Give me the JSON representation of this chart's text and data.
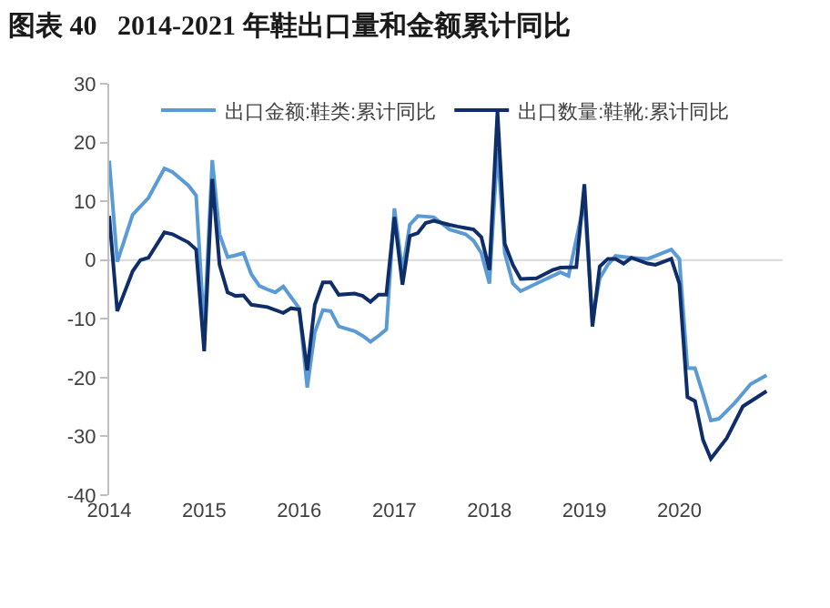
{
  "chart_data": {
    "type": "line",
    "title": "图表 40   2014-2021 年鞋出口量和金额累计同比",
    "xlim": [
      "2014-01",
      "2021-02"
    ],
    "xticks": [
      {
        "value": "2014-01",
        "label": "2014"
      },
      {
        "value": "2015-01",
        "label": "2015"
      },
      {
        "value": "2016-01",
        "label": "2016"
      },
      {
        "value": "2017-01",
        "label": "2017"
      },
      {
        "value": "2018-01",
        "label": "2018"
      },
      {
        "value": "2019-01",
        "label": "2019"
      },
      {
        "value": "2020-01",
        "label": "2020"
      }
    ],
    "ylim": [
      -40,
      30
    ],
    "yticks": [
      -40,
      -30,
      -20,
      -10,
      0,
      10,
      20,
      30
    ],
    "grid": false,
    "legend": "top",
    "marker": "none",
    "line_style": "solid",
    "ref_lines": [
      {
        "axis": "y",
        "value": 0,
        "color": "#d9d9d9"
      }
    ],
    "series": [
      {
        "name": "出口金额:鞋类:累计同比",
        "color": "#5b9bd5",
        "x": [
          "2014-01",
          "2014-02",
          "2014-04",
          "2014-06",
          "2014-08",
          "2014-09",
          "2014-11",
          "2014-12",
          "2015-01",
          "2015-02",
          "2015-03",
          "2015-04",
          "2015-05",
          "2015-06",
          "2015-07",
          "2015-08",
          "2015-09",
          "2015-10",
          "2015-11",
          "2016-01",
          "2016-02",
          "2016-03",
          "2016-04",
          "2016-05",
          "2016-06",
          "2016-08",
          "2016-09",
          "2016-10",
          "2016-11",
          "2016-12",
          "2017-01",
          "2017-02",
          "2017-03",
          "2017-04",
          "2017-06",
          "2017-08",
          "2017-10",
          "2017-11",
          "2017-12",
          "2018-01",
          "2018-02",
          "2018-03",
          "2018-04",
          "2018-05",
          "2018-07",
          "2018-09",
          "2018-10",
          "2018-11",
          "2019-01",
          "2019-02",
          "2019-03",
          "2019-04",
          "2019-05",
          "2019-07",
          "2019-09",
          "2019-10",
          "2019-12",
          "2020-01",
          "2020-02",
          "2020-03",
          "2020-04",
          "2020-05",
          "2020-06",
          "2020-08",
          "2020-10",
          "2020-12"
        ],
        "values": [
          16.9,
          -0.3,
          7.7,
          10.6,
          15.6,
          15.0,
          12.7,
          11.0,
          -12.0,
          17.0,
          4.4,
          0.5,
          0.8,
          1.2,
          -2.4,
          -4.4,
          -5.0,
          -5.5,
          -4.5,
          -8.2,
          -21.7,
          -12.3,
          -8.5,
          -8.7,
          -11.3,
          -12.1,
          -12.9,
          -13.9,
          -12.9,
          -11.8,
          8.8,
          -1.9,
          6.0,
          7.5,
          7.3,
          5.2,
          4.4,
          3.3,
          1.2,
          -4.0,
          19.0,
          1.2,
          -4.0,
          -5.3,
          -4.0,
          -2.7,
          -2.1,
          -2.7,
          10.0,
          -10.2,
          -3.1,
          -0.8,
          0.7,
          0.4,
          0.2,
          0.7,
          1.8,
          0.2,
          -18.4,
          -18.4,
          -22.8,
          -27.3,
          -27.0,
          -24.3,
          -21.1,
          -19.6
        ]
      },
      {
        "name": "出口数量:鞋靴:累计同比",
        "color": "#0f2d69",
        "x": [
          "2014-01",
          "2014-02",
          "2014-04",
          "2014-05",
          "2014-06",
          "2014-08",
          "2014-09",
          "2014-11",
          "2014-12",
          "2015-01",
          "2015-02",
          "2015-03",
          "2015-04",
          "2015-05",
          "2015-06",
          "2015-07",
          "2015-09",
          "2015-11",
          "2015-12",
          "2016-01",
          "2016-02",
          "2016-03",
          "2016-04",
          "2016-05",
          "2016-06",
          "2016-08",
          "2016-09",
          "2016-10",
          "2016-11",
          "2016-12",
          "2017-01",
          "2017-02",
          "2017-03",
          "2017-04",
          "2017-05",
          "2017-06",
          "2017-08",
          "2017-09",
          "2017-11",
          "2017-12",
          "2018-01",
          "2018-02",
          "2018-03",
          "2018-04",
          "2018-05",
          "2018-07",
          "2018-09",
          "2018-10",
          "2018-12",
          "2019-01",
          "2019-02",
          "2019-03",
          "2019-04",
          "2019-05",
          "2019-06",
          "2019-07",
          "2019-09",
          "2019-10",
          "2019-12",
          "2020-01",
          "2020-02",
          "2020-03",
          "2020-04",
          "2020-05",
          "2020-07",
          "2020-09",
          "2020-12"
        ],
        "values": [
          7.5,
          -8.7,
          -1.9,
          0.0,
          0.4,
          4.7,
          4.4,
          3.0,
          1.8,
          -15.5,
          13.8,
          -0.8,
          -5.5,
          -6.1,
          -6.0,
          -7.6,
          -8.0,
          -9.0,
          -8.2,
          -8.4,
          -18.8,
          -7.6,
          -3.8,
          -3.8,
          -5.9,
          -5.7,
          -6.1,
          -7.1,
          -5.9,
          -5.9,
          7.3,
          -4.2,
          4.1,
          4.6,
          6.3,
          6.7,
          6.0,
          5.7,
          5.2,
          3.9,
          -1.7,
          25.3,
          2.8,
          -0.8,
          -3.2,
          -3.1,
          -1.7,
          -1.3,
          -1.2,
          12.9,
          -11.3,
          -1.1,
          0.2,
          0.2,
          -0.6,
          0.4,
          -0.6,
          -0.8,
          0.2,
          -4.0,
          -23.3,
          -24.0,
          -30.6,
          -33.8,
          -30.3,
          -24.9,
          -22.3
        ]
      }
    ]
  }
}
